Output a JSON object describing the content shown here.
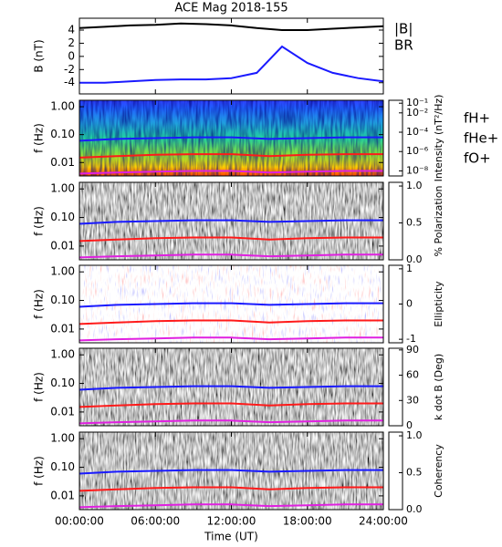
{
  "chart_data": [
    {
      "type": "line",
      "title": "ACE Mag 2018-155",
      "ylabel": "B (nT)",
      "x": [
        0,
        2,
        4,
        6,
        8,
        10,
        12,
        14,
        16,
        18,
        20,
        22,
        24
      ],
      "series": [
        {
          "name": "|B|",
          "color": "#000000",
          "values": [
            4.3,
            4.5,
            4.7,
            4.8,
            5.0,
            4.9,
            4.7,
            4.3,
            4.0,
            4.0,
            4.2,
            4.4,
            4.6
          ]
        },
        {
          "name": "BR",
          "color": "#1a1aff",
          "values": [
            -4.0,
            -4.0,
            -3.8,
            -3.6,
            -3.5,
            -3.5,
            -3.3,
            -2.5,
            1.5,
            -1.0,
            -2.5,
            -3.3,
            -3.8
          ]
        }
      ],
      "ylim": [
        -5.7,
        5.8
      ],
      "yticks": [
        -4,
        -2,
        0,
        2,
        4
      ]
    },
    {
      "type": "spectrogram",
      "ylabel": "f (Hz)",
      "log_y": true,
      "colormap": "rainbow",
      "x": [
        0,
        3,
        6,
        9,
        12,
        15,
        18,
        21,
        24
      ],
      "series": [
        {
          "name": "fH+",
          "color": "#1a1aff",
          "values": [
            0.06,
            0.07,
            0.075,
            0.08,
            0.08,
            0.07,
            0.075,
            0.08,
            0.08
          ]
        },
        {
          "name": "fHe+",
          "color": "#ff1a1a",
          "values": [
            0.015,
            0.017,
            0.019,
            0.02,
            0.02,
            0.017,
            0.019,
            0.02,
            0.02
          ]
        },
        {
          "name": "fO+",
          "color": "#e020e0",
          "values": [
            0.004,
            0.0044,
            0.0047,
            0.005,
            0.005,
            0.0044,
            0.0047,
            0.005,
            0.005
          ]
        }
      ],
      "ylim": [
        0.0033,
        1.7
      ],
      "yticks": [
        {
          "value": 0.01,
          "label": "0.01"
        },
        {
          "value": 0.1,
          "label": "0.10"
        },
        {
          "value": 1,
          "label": "1.00"
        }
      ],
      "colorbar_label": "Intensity (nT²/Hz)",
      "clog": true,
      "clim": [
        3e-09,
        0.2
      ],
      "cticks": [
        {
          "value": 1e-08,
          "label": "10⁻⁸"
        },
        {
          "value": 1e-06,
          "label": "10⁻⁶"
        },
        {
          "value": 0.0001,
          "label": "10⁻⁴"
        },
        {
          "value": 0.01,
          "label": "10⁻²"
        },
        {
          "value": 0.1,
          "label": "10⁻¹"
        }
      ]
    },
    {
      "type": "spectrogram",
      "ylabel": "f (Hz)",
      "colormap": "gray",
      "ylim": [
        0.0033,
        1.7
      ],
      "yticks": [
        {
          "value": 0.01,
          "label": "0.01"
        },
        {
          "value": 0.1,
          "label": "0.10"
        },
        {
          "value": 1,
          "label": "1.00"
        }
      ],
      "colorbar_label": "% Polarization",
      "clim": [
        0,
        1.05
      ],
      "cticks": [
        {
          "value": 0,
          "label": "0.0"
        },
        {
          "value": 0.5,
          "label": "0.5"
        },
        {
          "value": 1,
          "label": "1.0"
        }
      ]
    },
    {
      "type": "spectrogram",
      "ylabel": "f (Hz)",
      "colormap": "redblue",
      "ylim": [
        0.0033,
        1.7
      ],
      "yticks": [
        {
          "value": 0.01,
          "label": "0.01"
        },
        {
          "value": 0.1,
          "label": "0.10"
        },
        {
          "value": 1,
          "label": "1.00"
        }
      ],
      "colorbar_label": "Ellipticity",
      "clim": [
        -1.1,
        1.1
      ],
      "cticks": [
        -1,
        0,
        1
      ]
    },
    {
      "type": "spectrogram",
      "ylabel": "f (Hz)",
      "colormap": "gray",
      "ylim": [
        0.0033,
        1.7
      ],
      "yticks": [
        {
          "value": 0.01,
          "label": "0.01"
        },
        {
          "value": 0.1,
          "label": "0.10"
        },
        {
          "value": 1,
          "label": "1.00"
        }
      ],
      "colorbar_label": "k dot B (Deg)",
      "clim": [
        0,
        92
      ],
      "cticks": [
        0,
        30,
        60,
        90
      ]
    },
    {
      "type": "spectrogram",
      "ylabel": "f (Hz)",
      "colormap": "gray",
      "ylim": [
        0.0033,
        1.7
      ],
      "yticks": [
        {
          "value": 0.01,
          "label": "0.01"
        },
        {
          "value": 0.1,
          "label": "0.10"
        },
        {
          "value": 1,
          "label": "1.00"
        }
      ],
      "colorbar_label": "Coherency",
      "clim": [
        0,
        1.05
      ],
      "cticks": [
        {
          "value": 0,
          "label": "0.0"
        },
        {
          "value": 0.5,
          "label": "0.5"
        },
        {
          "value": 1,
          "label": "1.0"
        }
      ],
      "xlabel": "Time (UT)",
      "xlim": [
        0,
        24
      ],
      "xticks": [
        {
          "value": 0,
          "label": "00:00:00"
        },
        {
          "value": 6,
          "label": "06:00:00"
        },
        {
          "value": 12,
          "label": "12:00:00"
        },
        {
          "value": 18,
          "label": "18:00:00"
        },
        {
          "value": 24,
          "label": "24:00:00"
        }
      ]
    }
  ]
}
